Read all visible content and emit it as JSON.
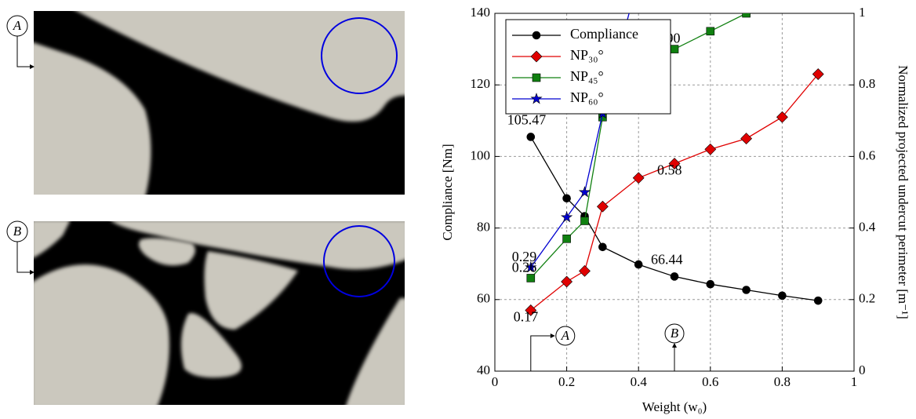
{
  "images": [
    {
      "label": "A"
    },
    {
      "label": "B"
    }
  ],
  "chart_data": {
    "type": "line",
    "xlabel": "Weight (w₀)",
    "ylabel": "Compliance [Nm]",
    "y2label": "Normalized projected undercut perimeter [m⁻¹]",
    "xlim": [
      0,
      1
    ],
    "xticks": [
      0,
      0.2,
      0.4,
      0.6,
      0.8,
      1
    ],
    "ylim": [
      40,
      140
    ],
    "yticks": [
      40,
      60,
      80,
      100,
      120,
      140
    ],
    "y2lim": [
      0,
      1
    ],
    "y2ticks": [
      0,
      0.2,
      0.4,
      0.6,
      0.8,
      1
    ],
    "grid": true,
    "legend": "upper left",
    "series": [
      {
        "name": "Compliance",
        "color": "#000000",
        "marker": "circle",
        "x": [
          0.1,
          0.2,
          0.25,
          0.3,
          0.4,
          0.5,
          0.6,
          0.7,
          0.8,
          0.9
        ],
        "values": [
          105.47,
          88.3,
          83.3,
          74.7,
          69.8,
          66.44,
          64.3,
          62.7,
          61.1,
          59.7
        ],
        "value_labels": [
          "105.47",
          null,
          null,
          null,
          null,
          "66.44",
          null,
          null,
          null,
          null
        ]
      },
      {
        "name": "NP₃₀°",
        "color": "#e00000",
        "marker": "diamond",
        "axis": "y2",
        "x": [
          0.1,
          0.2,
          0.25,
          0.3,
          0.4,
          0.5,
          0.6,
          0.7,
          0.8,
          0.9
        ],
        "values": [
          0.17,
          0.25,
          0.28,
          0.46,
          0.54,
          0.58,
          0.62,
          0.65,
          0.71,
          0.83
        ],
        "value_labels": [
          "0.17",
          null,
          null,
          null,
          null,
          "0.58",
          null,
          null,
          null,
          null
        ]
      },
      {
        "name": "NP₄₅°",
        "color": "#108010",
        "marker": "square",
        "axis": "y2",
        "x": [
          0.1,
          0.2,
          0.25,
          0.3,
          0.4,
          0.5,
          0.6,
          0.7
        ],
        "values": [
          0.26,
          0.37,
          0.42,
          0.71,
          0.84,
          0.9,
          0.95,
          1.0
        ],
        "value_labels": [
          "0.26",
          null,
          null,
          null,
          null,
          "0.90",
          null,
          null
        ]
      },
      {
        "name": "NP₆₀°",
        "color": "#0000d0",
        "marker": "star",
        "axis": "y2",
        "x": [
          0.1,
          0.2,
          0.25,
          0.3,
          0.4
        ],
        "values": [
          0.29,
          0.43,
          0.5,
          0.72,
          1.1
        ],
        "value_labels": [
          "0.29",
          null,
          null,
          null,
          null
        ]
      }
    ],
    "annotations": [
      {
        "text": "A",
        "x": 0.1
      },
      {
        "text": "B",
        "x": 0.5
      }
    ]
  }
}
